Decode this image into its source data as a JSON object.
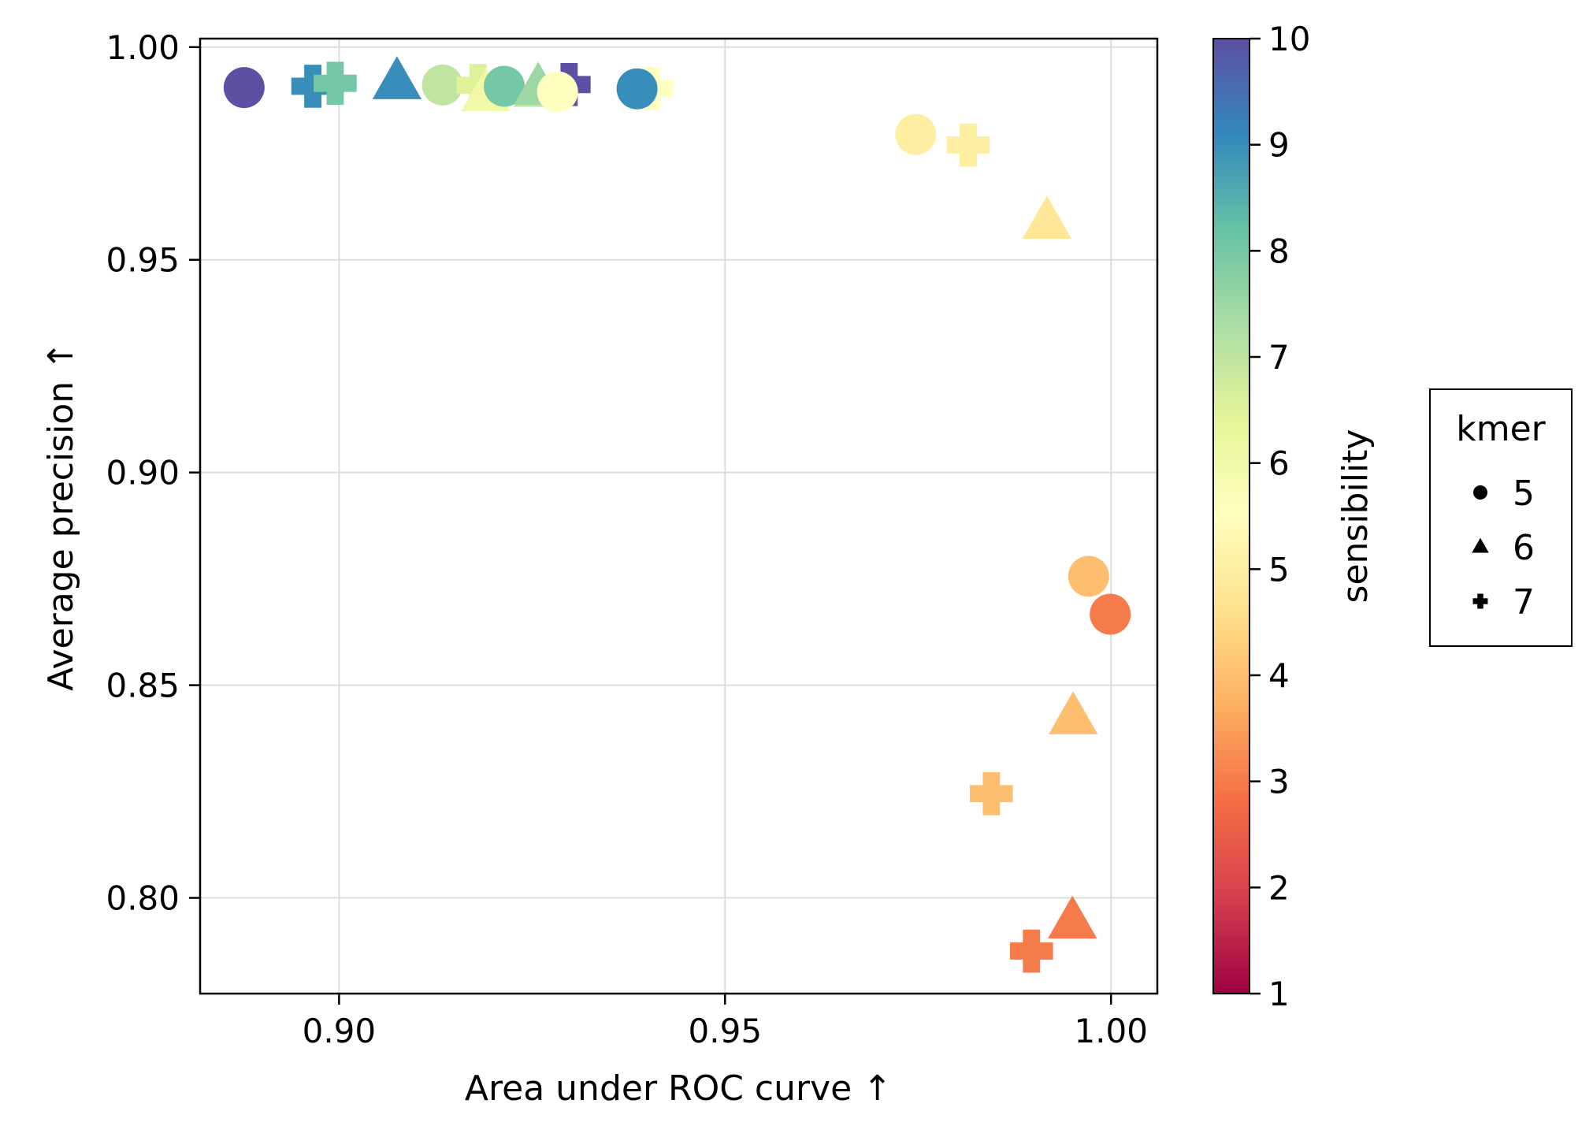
{
  "chart_data": {
    "type": "scatter",
    "xlabel": "Area under ROC curve ↑",
    "ylabel": "Average precision ↑",
    "xlim": [
      0.882,
      1.006
    ],
    "ylim": [
      0.7775,
      1.002
    ],
    "xticks": [
      0.9,
      0.95,
      1.0
    ],
    "yticks": [
      0.8,
      0.85,
      0.9,
      0.95,
      1.0
    ],
    "xtick_labels": [
      "0.90",
      "0.95",
      "1.00"
    ],
    "ytick_labels": [
      "0.80",
      "0.85",
      "0.90",
      "0.95",
      "1.00"
    ],
    "grid": true,
    "colorbar": {
      "label": "sensibility",
      "colormap": "Spectral",
      "range": [
        1,
        10
      ],
      "ticks": [
        1,
        2,
        3,
        4,
        5,
        6,
        7,
        8,
        9,
        10
      ],
      "tick_labels": [
        "1",
        "2",
        "3",
        "4",
        "5",
        "6",
        "7",
        "8",
        "9",
        "10"
      ]
    },
    "legend": {
      "title": "kmer",
      "placement": "right",
      "entries": [
        {
          "label": "5",
          "marker": "circle"
        },
        {
          "label": "6",
          "marker": "triangle"
        },
        {
          "label": "7",
          "marker": "cross"
        }
      ]
    },
    "points": [
      {
        "kmer": 5,
        "sensibility": 10,
        "x": 0.8877,
        "y": 0.9905
      },
      {
        "kmer": 7,
        "sensibility": 9,
        "x": 0.8966,
        "y": 0.9908
      },
      {
        "kmer": 7,
        "sensibility": 8,
        "x": 0.8995,
        "y": 0.9915
      },
      {
        "kmer": 6,
        "sensibility": 9,
        "x": 0.9075,
        "y": 0.9918
      },
      {
        "kmer": 5,
        "sensibility": 7,
        "x": 0.9134,
        "y": 0.9911
      },
      {
        "kmer": 7,
        "sensibility": 6.5,
        "x": 0.918,
        "y": 0.991
      },
      {
        "kmer": 6,
        "sensibility": 6,
        "x": 0.919,
        "y": 0.989
      },
      {
        "kmer": 5,
        "sensibility": 8,
        "x": 0.9214,
        "y": 0.9908
      },
      {
        "kmer": 6,
        "sensibility": 7,
        "x": 0.9258,
        "y": 0.99
      },
      {
        "kmer": 7,
        "sensibility": 10,
        "x": 0.9298,
        "y": 0.9912
      },
      {
        "kmer": 6,
        "sensibility": 7.5,
        "x": 0.9258,
        "y": 0.9905
      },
      {
        "kmer": 5,
        "sensibility": 5.5,
        "x": 0.9283,
        "y": 0.9895
      },
      {
        "kmer": 7,
        "sensibility": 5.5,
        "x": 0.9405,
        "y": 0.9902
      },
      {
        "kmer": 5,
        "sensibility": 9,
        "x": 0.9386,
        "y": 0.9902
      },
      {
        "kmer": 5,
        "sensibility": 5,
        "x": 0.9747,
        "y": 0.9795
      },
      {
        "kmer": 7,
        "sensibility": 5,
        "x": 0.9815,
        "y": 0.977
      },
      {
        "kmer": 6,
        "sensibility": 4.8,
        "x": 0.9917,
        "y": 0.959
      },
      {
        "kmer": 5,
        "sensibility": 4,
        "x": 0.9971,
        "y": 0.8756
      },
      {
        "kmer": 5,
        "sensibility": 3,
        "x": 0.9999,
        "y": 0.8667
      },
      {
        "kmer": 6,
        "sensibility": 4,
        "x": 0.9951,
        "y": 0.8425
      },
      {
        "kmer": 7,
        "sensibility": 4,
        "x": 0.9845,
        "y": 0.8245
      },
      {
        "kmer": 6,
        "sensibility": 3,
        "x": 0.995,
        "y": 0.7945
      },
      {
        "kmer": 7,
        "sensibility": 3,
        "x": 0.9897,
        "y": 0.7875
      }
    ]
  }
}
